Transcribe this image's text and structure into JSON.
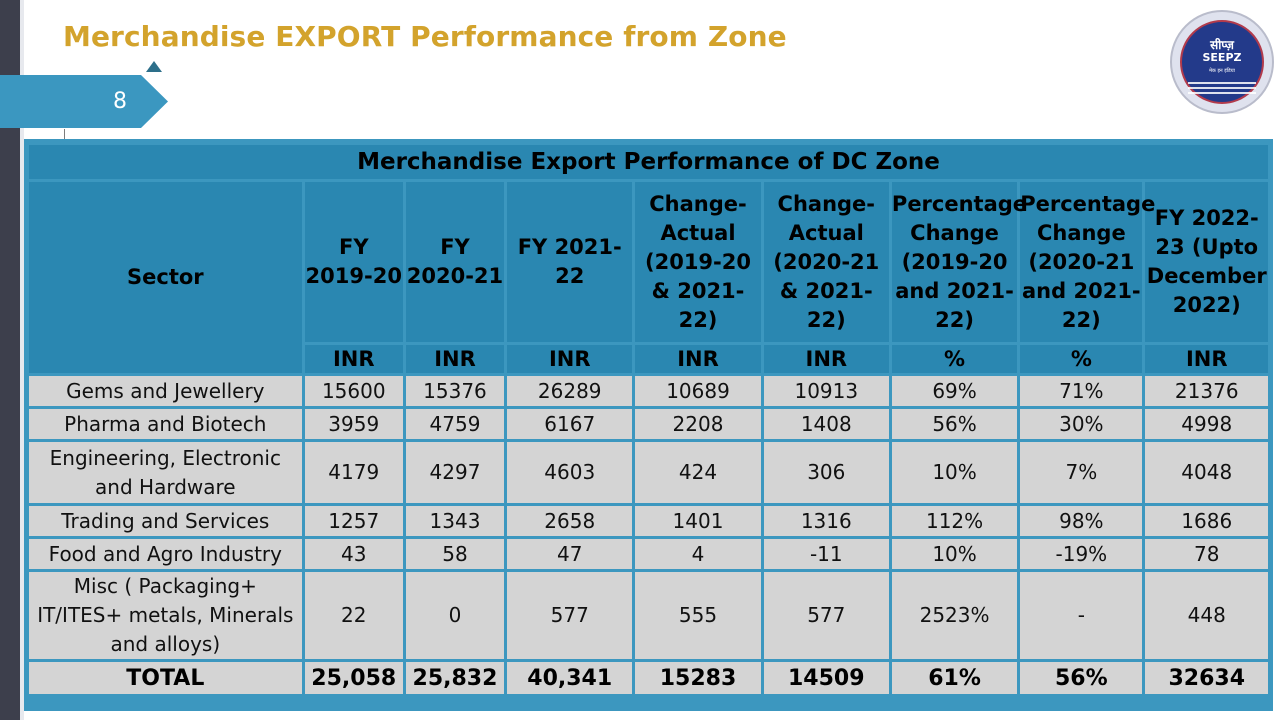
{
  "slide": {
    "title": "Merchandise EXPORT Performance from Zone",
    "page_number": "8"
  },
  "logo": {
    "hindi_text": "सीप्ज़",
    "text": "SEEPZ",
    "subtext": "मेक इन इंडिया"
  },
  "table": {
    "caption": "Merchandise Export Performance of DC Zone",
    "headers": [
      "Sector",
      "FY 2019-20",
      "FY 2020-21",
      "FY 2021-22",
      "Change-Actual (2019-20 & 2021-22)",
      "Change-Actual (2020-21 & 2021-22)",
      "Percentage Change (2019-20 and 2021-22)",
      "Percentage Change (2020-21 and 2021-22)",
      "FY 2022-23 (Upto December 2022)"
    ],
    "units": [
      "INR",
      "INR",
      "INR",
      "INR",
      "INR",
      "%",
      "%",
      "INR"
    ],
    "rows": [
      [
        "Gems and Jewellery",
        "15600",
        "15376",
        "26289",
        "10689",
        "10913",
        "69%",
        "71%",
        "21376"
      ],
      [
        "Pharma and Biotech",
        "3959",
        "4759",
        "6167",
        "2208",
        "1408",
        "56%",
        "30%",
        "4998"
      ],
      [
        "Engineering, Electronic and Hardware",
        "4179",
        "4297",
        "4603",
        "424",
        "306",
        "10%",
        "7%",
        "4048"
      ],
      [
        "Trading and Services",
        "1257",
        "1343",
        "2658",
        "1401",
        "1316",
        "112%",
        "98%",
        "1686"
      ],
      [
        "Food and Agro Industry",
        "43",
        "58",
        "47",
        "4",
        "-11",
        "10%",
        "-19%",
        "78"
      ],
      [
        "Misc ( Packaging+ IT/ITES+ metals, Minerals and alloys)",
        "22",
        "0",
        "577",
        "555",
        "577",
        "2523%",
        "-",
        "448"
      ]
    ],
    "total": [
      "TOTAL",
      "25,058",
      "25,832",
      "40,341",
      "15283",
      "14509",
      "61%",
      "56%",
      "32634"
    ]
  }
}
